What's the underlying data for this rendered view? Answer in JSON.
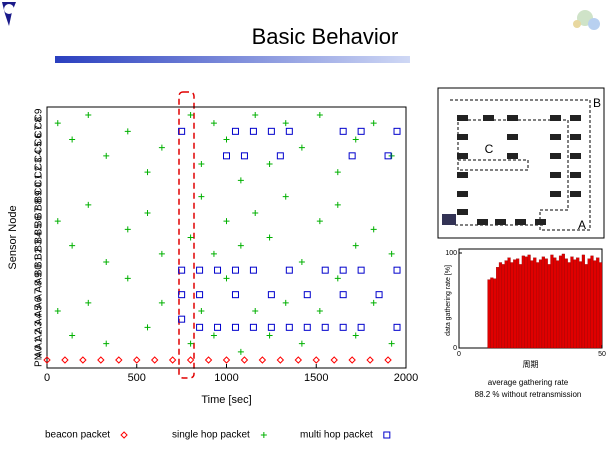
{
  "title": "Basic Behavior",
  "diagram": {
    "labels": [
      "A",
      "B",
      "C"
    ]
  },
  "chart_data": [
    {
      "type": "scatter",
      "xlabel": "Time [sec]",
      "ylabel": "Sensor Node",
      "xlim": [
        0,
        2000
      ],
      "xticks": [
        0,
        500,
        1000,
        1500,
        2000
      ],
      "categories": [
        "PN",
        "A0",
        "A1",
        "A2",
        "A3",
        "A4",
        "A5",
        "A6",
        "A7",
        "A8",
        "A9",
        "B0",
        "B1",
        "B2",
        "B3",
        "B4",
        "B5",
        "B6",
        "B7",
        "B8",
        "B9",
        "C0",
        "C1",
        "C2",
        "C3",
        "C4",
        "C5",
        "C6",
        "C7",
        "C8",
        "C9"
      ],
      "series": [
        {
          "name": "beacon packet",
          "marker": "diamond",
          "color": "#ff0000",
          "x": [
            0,
            100,
            200,
            300,
            400,
            500,
            600,
            700,
            800,
            900,
            1000,
            1100,
            1200,
            1300,
            1400,
            1500,
            1600,
            1700,
            1800,
            1900
          ],
          "y": [
            "PN",
            "PN",
            "PN",
            "PN",
            "PN",
            "PN",
            "PN",
            "PN",
            "PN",
            "PN",
            "PN",
            "PN",
            "PN",
            "PN",
            "PN",
            "PN",
            "PN",
            "PN",
            "PN",
            "PN"
          ]
        },
        {
          "name": "single hop packet",
          "marker": "plus",
          "color": "#00b000",
          "x": [
            60,
            60,
            60,
            140,
            140,
            140,
            230,
            230,
            230,
            330,
            330,
            330,
            450,
            450,
            450,
            560,
            560,
            560,
            640,
            640,
            640,
            800,
            800,
            800,
            860,
            860,
            860,
            930,
            930,
            930,
            1000,
            1000,
            1000,
            1080,
            1080,
            1080,
            1160,
            1160,
            1160,
            1240,
            1240,
            1240,
            1330,
            1330,
            1330,
            1420,
            1420,
            1420,
            1520,
            1520,
            1520,
            1620,
            1620,
            1620,
            1720,
            1720,
            1720,
            1820,
            1820,
            1820,
            1920,
            1920,
            1920
          ],
          "y": [
            "C8",
            "B6",
            "A5",
            "C6",
            "B3",
            "A2",
            "C9",
            "B8",
            "A6",
            "C4",
            "B1",
            "A1",
            "C7",
            "B5",
            "A9",
            "C2",
            "B7",
            "A3",
            "C5",
            "B2",
            "A6",
            "C9",
            "B4",
            "A1",
            "C3",
            "B9",
            "A5",
            "C8",
            "B2",
            "A2",
            "C6",
            "B6",
            "A9",
            "C1",
            "B3",
            "A0",
            "C9",
            "B7",
            "A5",
            "C3",
            "B4",
            "A2",
            "C8",
            "B9",
            "A6",
            "C5",
            "B1",
            "A1",
            "C9",
            "B6",
            "A5",
            "C2",
            "B8",
            "A9",
            "C6",
            "B3",
            "A2",
            "C8",
            "B5",
            "A6",
            "C4",
            "B2",
            "A1"
          ]
        },
        {
          "name": "multi hop packet",
          "marker": "square",
          "color": "#0000cc",
          "x": [
            750,
            1050,
            1150,
            1250,
            1350,
            1650,
            1750,
            1950,
            1000,
            1100,
            1300,
            1700,
            1900,
            750,
            850,
            950,
            1050,
            1150,
            1350,
            1550,
            1650,
            1750,
            1950,
            750,
            850,
            1050,
            1250,
            1450,
            1650,
            1850,
            750,
            850,
            950,
            1050,
            1150,
            1250,
            1350,
            1450,
            1550,
            1650,
            1750,
            1950
          ],
          "y": [
            "C7",
            "C7",
            "C7",
            "C7",
            "C7",
            "C7",
            "C7",
            "C7",
            "C4",
            "C4",
            "C4",
            "C4",
            "C4",
            "B0",
            "B0",
            "B0",
            "B0",
            "B0",
            "B0",
            "B0",
            "B0",
            "B0",
            "B0",
            "A7",
            "A7",
            "A7",
            "A7",
            "A7",
            "A7",
            "A7",
            "A4",
            "A3",
            "A3",
            "A3",
            "A3",
            "A3",
            "A3",
            "A3",
            "A3",
            "A3",
            "A3",
            "A3"
          ]
        }
      ]
    },
    {
      "type": "bar",
      "ylabel": "data gathering rate [%]",
      "xlabel": "周期",
      "caption": [
        "average gathering rate",
        "88.2 % without retransmission"
      ],
      "color": "#e00000",
      "xlim": [
        0,
        50
      ],
      "xticks": [
        0,
        50
      ],
      "ylim": [
        0,
        100
      ],
      "yticks": [
        0,
        100
      ],
      "x": [
        1,
        2,
        3,
        4,
        5,
        6,
        7,
        8,
        9,
        10,
        11,
        12,
        13,
        14,
        15,
        16,
        17,
        18,
        19,
        20,
        21,
        22,
        23,
        24,
        25,
        26,
        27,
        28,
        29,
        30,
        31,
        32,
        33,
        34,
        35,
        36,
        37,
        38,
        39,
        40,
        41,
        42,
        43,
        44,
        45,
        46,
        47,
        48,
        49,
        50
      ],
      "values": [
        0,
        0,
        0,
        0,
        0,
        0,
        0,
        0,
        0,
        0,
        72,
        74,
        73,
        85,
        90,
        88,
        92,
        95,
        90,
        93,
        94,
        88,
        97,
        96,
        98,
        92,
        95,
        90,
        93,
        96,
        94,
        88,
        98,
        95,
        92,
        97,
        99,
        94,
        90,
        96,
        93,
        95,
        91,
        98,
        88,
        94,
        97,
        92,
        95,
        90
      ]
    }
  ]
}
